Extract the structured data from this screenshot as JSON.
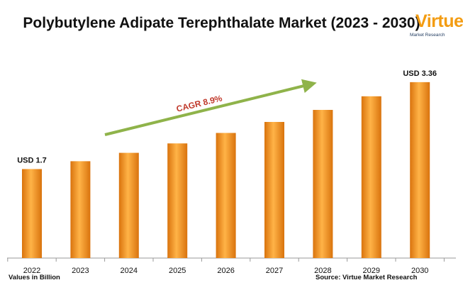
{
  "title": "Polybutylene Adipate Terephthalate Market (2023 - 2030)",
  "logo": {
    "word": "Virtue",
    "subtitle": "Market Research"
  },
  "units_note": "Values in Billion",
  "source_note": "Source: Virtue Market Research",
  "colors": {
    "bar_dark": "#d9730d",
    "bar_light": "#ffb347",
    "arrow": "#8fb34a",
    "cagr_text": "#c0392b"
  },
  "chart_data": {
    "type": "bar",
    "categories": [
      "2022",
      "2023",
      "2024",
      "2025",
      "2026",
      "2027",
      "2028",
      "2029",
      "2030"
    ],
    "values": [
      1.7,
      1.85,
      2.01,
      2.19,
      2.39,
      2.6,
      2.83,
      3.09,
      3.36
    ],
    "data_labels": {
      "0": "USD 1.7",
      "8": "USD 3.36"
    },
    "annotation": {
      "text": "CAGR 8.9%",
      "type": "arrow"
    },
    "ylim": [
      0,
      3.9
    ],
    "grid": false,
    "legend": "none"
  }
}
